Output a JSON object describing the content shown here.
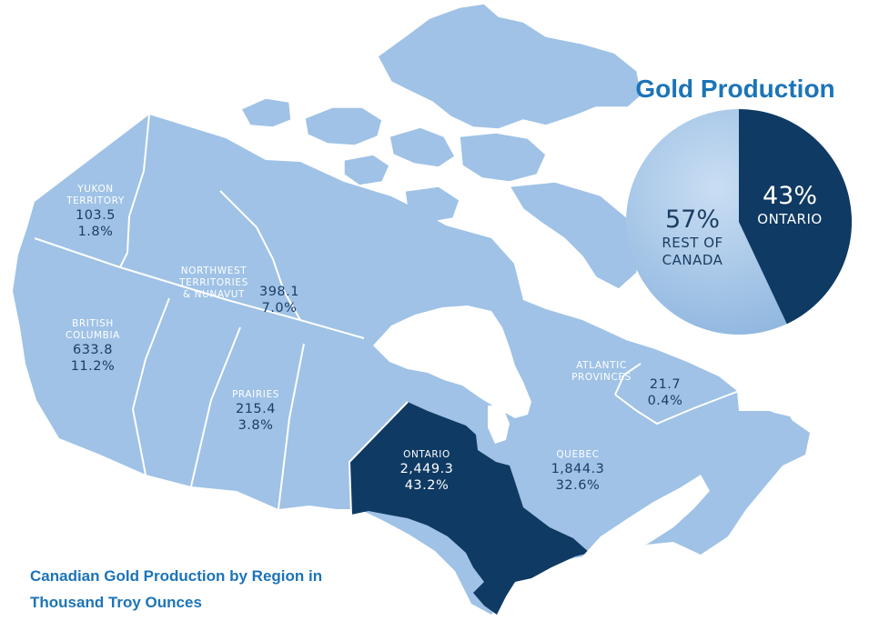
{
  "colors": {
    "region": "#9fc2e6",
    "ontario": "#0f3a63",
    "title_blue": "#1c74b7",
    "label_dark": "#1b3d63",
    "water": "#ffffff"
  },
  "regions": {
    "yukon": {
      "name": "YUKON\nTERRITORY",
      "value": "103.5",
      "share": "1.8%"
    },
    "nwt": {
      "name": "NORTHWEST\nTERRITORIES\n& NUNAVUT",
      "value": "398.1",
      "share": "7.0%"
    },
    "bc": {
      "name": "BRITISH\nCOLUMBIA",
      "value": "633.8",
      "share": "11.2%"
    },
    "prairies": {
      "name": "PRAIRIES",
      "value": "215.4",
      "share": "3.8%"
    },
    "ontario": {
      "name": "ONTARIO",
      "value": "2,449.3",
      "share": "43.2%"
    },
    "quebec": {
      "name": "QUEBEC",
      "value": "1,844.3",
      "share": "32.6%"
    },
    "atlantic": {
      "name": "ATLANTIC\nPROVINCES",
      "value": "21.7",
      "share": "0.4%"
    }
  },
  "pie": {
    "title": "Gold Production",
    "slices": [
      {
        "label": "ONTARIO",
        "percent": 43,
        "percent_text": "43%",
        "color": "#0f3a63"
      },
      {
        "label": "REST OF\nCANADA",
        "percent": 57,
        "percent_text": "57%",
        "color": "#a9c9ea"
      }
    ]
  },
  "caption": {
    "line1": "Canadian Gold Production by Region in",
    "line2": "Thousand Troy Ounces"
  }
}
